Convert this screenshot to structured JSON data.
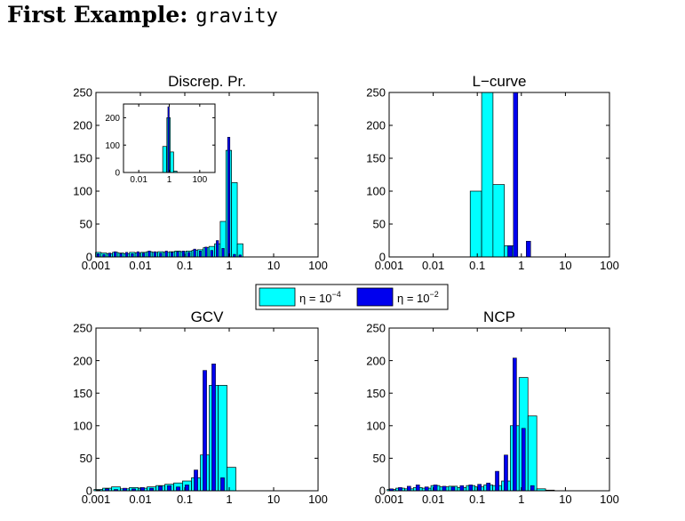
{
  "page": {
    "title_bold": "First Example:",
    "title_mono": "gravity"
  },
  "legend": {
    "entries": [
      {
        "name": "η = 10",
        "exp": "−4",
        "color": "#00ffff"
      },
      {
        "name": "η = 10",
        "exp": "−2",
        "color": "#0000ee"
      }
    ]
  },
  "colors": {
    "series1": "#00ffff",
    "series2": "#0000ee",
    "edge": "#000000"
  },
  "chart_data": [
    {
      "id": "discrep",
      "type": "bar",
      "title": "Discrep. Pr.",
      "xscale": "log",
      "xlim": [
        0.001,
        100
      ],
      "xticks": [
        "0.001",
        "0.01",
        "0.1",
        "1",
        "10",
        "100"
      ],
      "ylim": [
        0,
        250
      ],
      "yticks": [
        "0",
        "50",
        "100",
        "150",
        "200",
        "250"
      ],
      "bin_centers": [
        0.00113,
        0.00151,
        0.00203,
        0.00272,
        0.00365,
        0.0049,
        0.00658,
        0.00883,
        0.0118,
        0.0159,
        0.0213,
        0.0286,
        0.0384,
        0.0515,
        0.0691,
        0.0927,
        0.124,
        0.167,
        0.224,
        0.301,
        0.404,
        0.542,
        0.727,
        0.976,
        1.31,
        1.76,
        2.36,
        3.16,
        4.25,
        5.7,
        7.64,
        10.3,
        13.8,
        18.5,
        24.8,
        33.3,
        44.6,
        59.9,
        80.3
      ],
      "series": [
        {
          "values": [
            7,
            6,
            5,
            7,
            6,
            5,
            7,
            6,
            7,
            8,
            7,
            8,
            7,
            8,
            9,
            8,
            9,
            10,
            11,
            14,
            16,
            20,
            54,
            162,
            113,
            20,
            0,
            0,
            0,
            0,
            0,
            0,
            0,
            0,
            0,
            0,
            0,
            0,
            0
          ]
        },
        {
          "values": [
            5,
            4,
            6,
            8,
            5,
            7,
            5,
            8,
            6,
            9,
            8,
            6,
            9,
            7,
            8,
            9,
            7,
            12,
            9,
            15,
            10,
            25,
            13,
            182,
            4,
            3,
            0,
            0,
            0,
            0,
            0,
            0,
            0,
            0,
            0,
            0,
            0,
            0,
            0
          ]
        }
      ],
      "inset": {
        "xlim": [
          0.001,
          1000
        ],
        "xticks": [
          "0.01",
          "1",
          "100"
        ],
        "ylim": [
          0,
          250
        ],
        "yticks": [
          "0",
          "100",
          "200"
        ],
        "bin_centers": [
          0.3,
          0.5,
          0.9,
          1.5,
          2.5
        ],
        "series": [
          {
            "values": [
              0,
              95,
              200,
              75,
              5
            ]
          },
          {
            "values": [
              0,
              0,
              240,
              0,
              0
            ]
          }
        ]
      }
    },
    {
      "id": "lcurve",
      "type": "bar",
      "title": "L−curve",
      "xscale": "log",
      "xlim": [
        0.001,
        100
      ],
      "xticks": [
        "0.001",
        "0.01",
        "0.1",
        "1",
        "10",
        "100"
      ],
      "ylim": [
        0,
        250
      ],
      "yticks": [
        "0",
        "50",
        "100",
        "150",
        "200",
        "250"
      ],
      "bin_centers": [
        0.0513,
        0.0931,
        0.169,
        0.306,
        0.556
      ],
      "series": [
        {
          "values": [
            0,
            100,
            250,
            110,
            17
          ]
        },
        {
          "values": [
            0,
            0,
            0,
            0,
            17
          ]
        }
      ],
      "extra_s2": [
        {
          "x": 0.74,
          "value": 250
        },
        {
          "x": 1.45,
          "value": 24
        }
      ]
    },
    {
      "id": "gcv",
      "type": "bar",
      "title": "GCV",
      "xscale": "log",
      "xlim": [
        0.001,
        100
      ],
      "xticks": [
        "0.001",
        "0.01",
        "0.1",
        "1",
        "10",
        "100"
      ],
      "ylim": [
        0,
        250
      ],
      "yticks": [
        "0",
        "50",
        "100",
        "150",
        "200",
        "250"
      ],
      "bin_centers": [
        0.00113,
        0.00178,
        0.00282,
        0.00447,
        0.00708,
        0.0112,
        0.0178,
        0.0282,
        0.0447,
        0.0708,
        0.112,
        0.178,
        0.282,
        0.447,
        0.708,
        1.12,
        1.78
      ],
      "series": [
        {
          "values": [
            2,
            4,
            6,
            3,
            5,
            4,
            6,
            8,
            10,
            12,
            15,
            20,
            55,
            162,
            162,
            36,
            0
          ]
        },
        {
          "values": [
            1,
            3,
            2,
            4,
            3,
            5,
            4,
            7,
            8,
            6,
            9,
            32,
            185,
            195,
            20,
            0,
            0
          ]
        }
      ]
    },
    {
      "id": "ncp",
      "type": "bar",
      "title": "NCP",
      "xscale": "log",
      "xlim": [
        0.001,
        100
      ],
      "xticks": [
        "0.001",
        "0.01",
        "0.1",
        "1",
        "10",
        "100"
      ],
      "ylim": [
        0,
        250
      ],
      "yticks": [
        "0",
        "50",
        "100",
        "150",
        "200",
        "250"
      ],
      "bin_centers": [
        0.00113,
        0.00178,
        0.00282,
        0.00447,
        0.00708,
        0.0112,
        0.0178,
        0.0282,
        0.0447,
        0.0708,
        0.112,
        0.178,
        0.282,
        0.447,
        0.708,
        1.12,
        1.78,
        2.82,
        4.47
      ],
      "series": [
        {
          "values": [
            2,
            4,
            3,
            5,
            4,
            8,
            6,
            7,
            5,
            8,
            6,
            9,
            8,
            15,
            100,
            174,
            115,
            3,
            1
          ]
        },
        {
          "values": [
            3,
            5,
            7,
            9,
            6,
            9,
            7,
            6,
            8,
            9,
            10,
            12,
            30,
            55,
            204,
            96,
            8,
            0,
            0
          ]
        }
      ]
    }
  ]
}
